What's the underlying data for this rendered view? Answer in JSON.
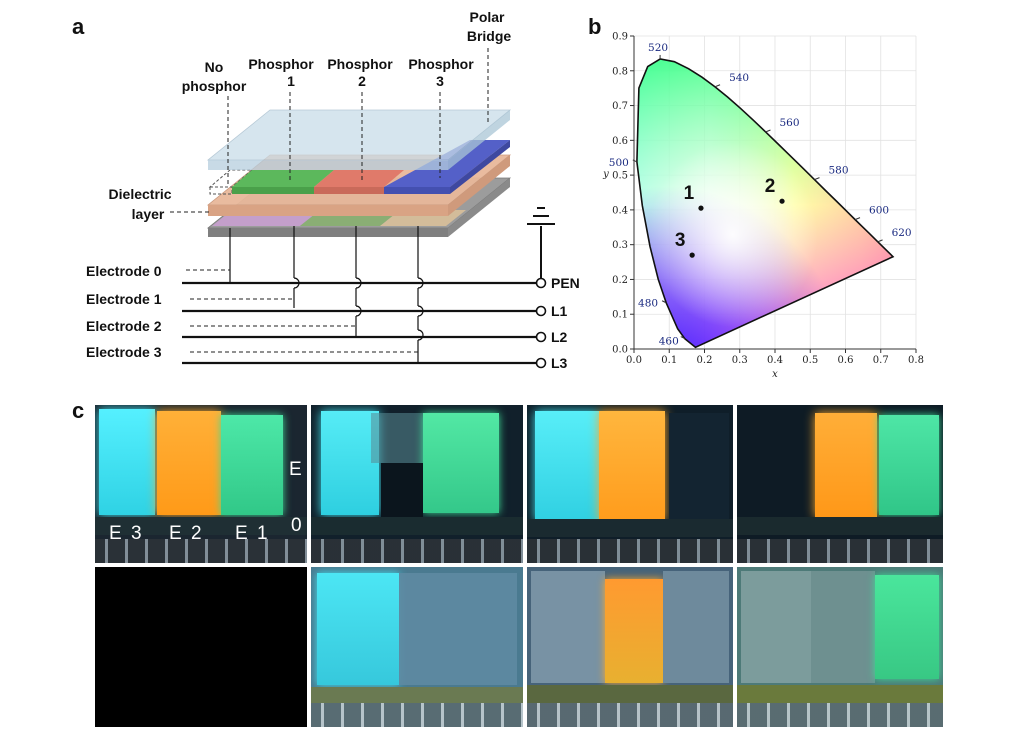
{
  "panels": {
    "a": "a",
    "b": "b",
    "c": "c"
  },
  "schematic": {
    "top_labels": {
      "no_phosphor": [
        "No",
        "phosphor"
      ],
      "phosphor1": [
        "Phosphor",
        "1"
      ],
      "phosphor2": [
        "Phosphor",
        "2"
      ],
      "phosphor3": [
        "Phosphor",
        "3"
      ],
      "polar_bridge": [
        "Polar",
        "Bridge"
      ]
    },
    "dielectric": [
      "Dielectric",
      "layer"
    ],
    "electrodes": [
      "Electrode 0",
      "Electrode 1",
      "Electrode 2",
      "Electrode 3"
    ],
    "terminals": [
      "PEN",
      "L1",
      "L2",
      "L3"
    ],
    "colors": {
      "top_plate": "#c9dde9",
      "phosphor1": "#5cb85c",
      "phosphor2": "#e07a6a",
      "phosphor3": "#5460c8",
      "dielectric": "#e8b89a",
      "bottom": "#a0a0a0",
      "purple": "#c9a0d0"
    }
  },
  "chart_data": {
    "type": "scatter",
    "xlabel": "x",
    "ylabel": "y",
    "xlim": [
      0.0,
      0.8
    ],
    "ylim": [
      0.0,
      0.9
    ],
    "xticks": [
      "0.0",
      "0.1",
      "0.2",
      "0.3",
      "0.4",
      "0.5",
      "0.6",
      "0.7",
      "0.8"
    ],
    "yticks": [
      "0.0",
      "0.1",
      "0.2",
      "0.3",
      "0.4",
      "0.5",
      "0.6",
      "0.7",
      "0.8",
      "0.9"
    ],
    "points": [
      {
        "label": "1",
        "x": 0.19,
        "y": 0.405
      },
      {
        "label": "2",
        "x": 0.42,
        "y": 0.425
      },
      {
        "label": "3",
        "x": 0.165,
        "y": 0.27
      }
    ],
    "wavelength_labels": [
      {
        "text": "460",
        "x": 0.144,
        "y": 0.03
      },
      {
        "text": "480",
        "x": 0.091,
        "y": 0.133
      },
      {
        "text": "500",
        "x": 0.008,
        "y": 0.538
      },
      {
        "text": "520",
        "x": 0.074,
        "y": 0.834
      },
      {
        "text": "540",
        "x": 0.23,
        "y": 0.754
      },
      {
        "text": "560",
        "x": 0.373,
        "y": 0.624
      },
      {
        "text": "580",
        "x": 0.512,
        "y": 0.487
      },
      {
        "text": "600",
        "x": 0.627,
        "y": 0.372
      },
      {
        "text": "620",
        "x": 0.691,
        "y": 0.308
      }
    ],
    "locus": [
      [
        0.1741,
        0.005
      ],
      [
        0.144,
        0.0297
      ],
      [
        0.1241,
        0.0578
      ],
      [
        0.0913,
        0.1327
      ],
      [
        0.0687,
        0.2007
      ],
      [
        0.0454,
        0.295
      ],
      [
        0.0235,
        0.4127
      ],
      [
        0.0082,
        0.5384
      ],
      [
        0.0139,
        0.7502
      ],
      [
        0.0389,
        0.812
      ],
      [
        0.0743,
        0.8338
      ],
      [
        0.1142,
        0.8262
      ],
      [
        0.1547,
        0.8059
      ],
      [
        0.1929,
        0.7816
      ],
      [
        0.2296,
        0.7543
      ],
      [
        0.2658,
        0.7243
      ],
      [
        0.3016,
        0.6923
      ],
      [
        0.3373,
        0.6589
      ],
      [
        0.3731,
        0.6245
      ],
      [
        0.4087,
        0.5896
      ],
      [
        0.4441,
        0.5547
      ],
      [
        0.4788,
        0.5202
      ],
      [
        0.5125,
        0.4866
      ],
      [
        0.5448,
        0.4544
      ],
      [
        0.5752,
        0.4242
      ],
      [
        0.6029,
        0.3965
      ],
      [
        0.627,
        0.3725
      ],
      [
        0.6482,
        0.3514
      ],
      [
        0.6658,
        0.334
      ],
      [
        0.6915,
        0.3083
      ],
      [
        0.7347,
        0.2653
      ]
    ]
  },
  "photos": {
    "labels": {
      "e3": "E 3",
      "e2": "E 2",
      "e1": "E 1",
      "e": "E",
      "zero": "0"
    },
    "colors": {
      "cyan": "#3fe0ec",
      "orange": "#ffa928",
      "green": "#3fdc98",
      "dark": "#0e1c26",
      "black": "#000000"
    }
  }
}
